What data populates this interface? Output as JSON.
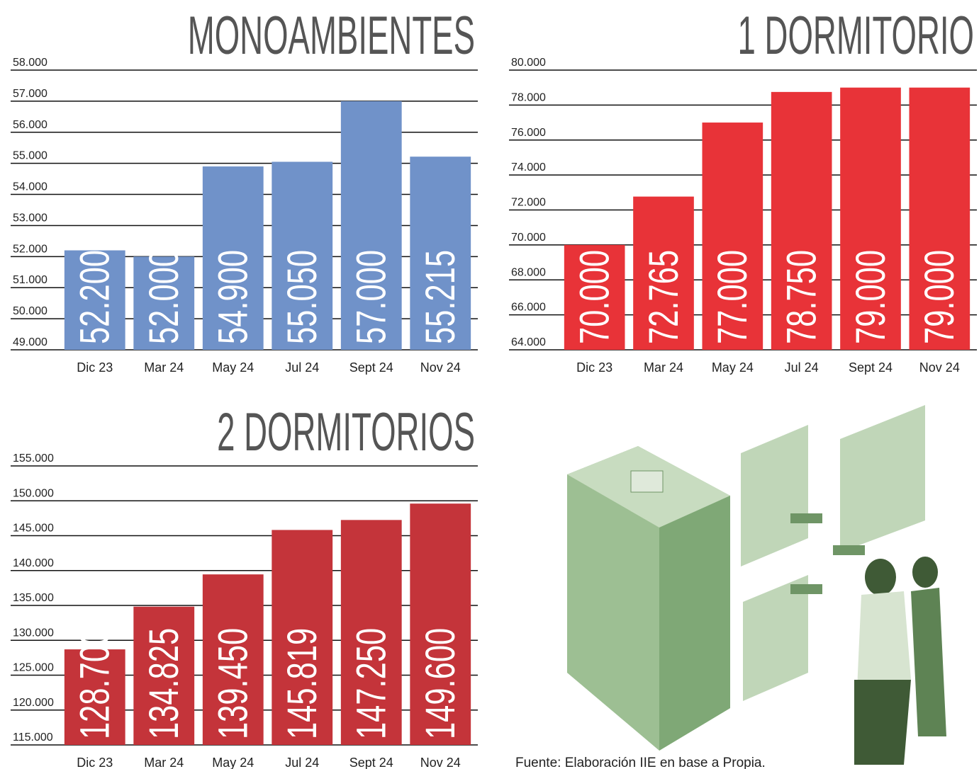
{
  "chart_data": [
    {
      "type": "bar",
      "title": "MONOAMBIENTES",
      "categories": [
        "Dic 23",
        "Mar 24",
        "May 24",
        "Jul 24",
        "Sept 24",
        "Nov 24"
      ],
      "values": [
        52200,
        52000,
        54900,
        55050,
        57000,
        55215
      ],
      "value_labels": [
        "52.200",
        "52.000",
        "54.900",
        "55.050",
        "57.000",
        "55.215"
      ],
      "color": "#7092c9",
      "ylim": [
        49000,
        58000
      ],
      "yticks": [
        {
          "value": 49000,
          "label": "49.000"
        },
        {
          "value": 50000,
          "label": "50.000"
        },
        {
          "value": 51000,
          "label": "51.000"
        },
        {
          "value": 52000,
          "label": "52.000"
        },
        {
          "value": 53000,
          "label": "53.000"
        },
        {
          "value": 54000,
          "label": "54.000"
        },
        {
          "value": 55000,
          "label": "55.000"
        },
        {
          "value": 56000,
          "label": "56.000"
        },
        {
          "value": 57000,
          "label": "57.000"
        },
        {
          "value": 58000,
          "label": "58.000"
        }
      ],
      "grid": true
    },
    {
      "type": "bar",
      "title": "1 DORMITORIO",
      "categories": [
        "Dic 23",
        "Mar 24",
        "May 24",
        "Jul 24",
        "Sept 24",
        "Nov 24"
      ],
      "values": [
        70000,
        72765,
        77000,
        78750,
        79000,
        79000
      ],
      "value_labels": [
        "70.000",
        "72.765",
        "77.000",
        "78.750",
        "79.000",
        "79.000"
      ],
      "color": "#e83338",
      "ylim": [
        64000,
        80000
      ],
      "yticks": [
        {
          "value": 64000,
          "label": "64.000"
        },
        {
          "value": 66000,
          "label": "66.000"
        },
        {
          "value": 68000,
          "label": "68.000"
        },
        {
          "value": 70000,
          "label": "70.000"
        },
        {
          "value": 72000,
          "label": "72.000"
        },
        {
          "value": 74000,
          "label": "74.000"
        },
        {
          "value": 76000,
          "label": "76.000"
        },
        {
          "value": 78000,
          "label": "78.000"
        },
        {
          "value": 80000,
          "label": "80.000"
        }
      ],
      "grid": true
    },
    {
      "type": "bar",
      "title": "2 DORMITORIOS",
      "categories": [
        "Dic 23",
        "Mar 24",
        "May 24",
        "Jul 24",
        "Sept 24",
        "Nov 24"
      ],
      "values": [
        128700,
        134825,
        139450,
        145819,
        147250,
        149600
      ],
      "value_labels": [
        "128.700",
        "134.825",
        "139.450",
        "145.819",
        "147.250",
        "149.600"
      ],
      "color": "#c4343a",
      "ylim": [
        115000,
        155000
      ],
      "yticks": [
        {
          "value": 115000,
          "label": "115.000"
        },
        {
          "value": 120000,
          "label": "120.000"
        },
        {
          "value": 125000,
          "label": "125.000"
        },
        {
          "value": 130000,
          "label": "130.000"
        },
        {
          "value": 135000,
          "label": "135.000"
        },
        {
          "value": 140000,
          "label": "140.000"
        },
        {
          "value": 145000,
          "label": "145.000"
        },
        {
          "value": 150000,
          "label": "150.000"
        },
        {
          "value": 155000,
          "label": "155.000"
        }
      ],
      "grid": true
    }
  ],
  "source": "Fuente: Elaboración IIE en base a Propia."
}
